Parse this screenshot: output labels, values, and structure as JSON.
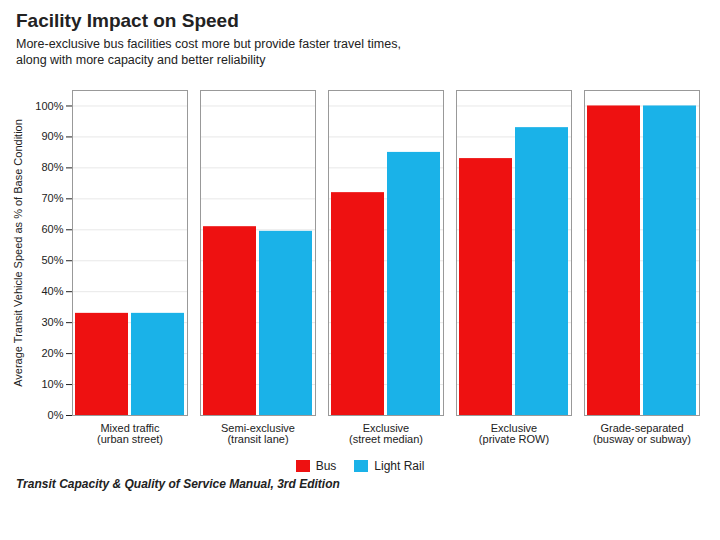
{
  "chart_data": {
    "type": "bar",
    "title": "Facility Impact on Speed",
    "subtitle": "More-exclusive bus facilities cost more but provide faster travel times,\nalong with more capacity and better reliability",
    "caption": "Transit Capacity & Quality of Service Manual, 3rd Edition",
    "categories": [
      "Mixed traffic\n(urban street)",
      "Semi-exclusive\n(transit lane)",
      "Exclusive\n(street median)",
      "Exclusive\n(private ROW)",
      "Grade-separated\n(busway or subway)"
    ],
    "series": [
      {
        "name": "Bus",
        "color": "#ee1111",
        "values": [
          0.33,
          0.61,
          0.72,
          0.83,
          1.0
        ]
      },
      {
        "name": "Light Rail",
        "color": "#1ab2e8",
        "values": [
          0.33,
          0.595,
          0.85,
          0.93,
          1.0
        ]
      }
    ],
    "ylabel": "Average Transit Vehicle Speed as % of Base Condition",
    "ylim": [
      0,
      1.05
    ],
    "yticks": [
      {
        "value": 0.0,
        "label": "0%"
      },
      {
        "value": 0.1,
        "label": "10%"
      },
      {
        "value": 0.2,
        "label": "20%"
      },
      {
        "value": 0.3,
        "label": "30%"
      },
      {
        "value": 0.4,
        "label": "40%"
      },
      {
        "value": 0.5,
        "label": "50%"
      },
      {
        "value": 0.6,
        "label": "60%"
      },
      {
        "value": 0.7,
        "label": "70%"
      },
      {
        "value": 0.8,
        "label": "80%"
      },
      {
        "value": 0.9,
        "label": "90%"
      },
      {
        "value": 1.0,
        "label": "100%"
      }
    ],
    "grid": true,
    "legend": "bottom"
  }
}
